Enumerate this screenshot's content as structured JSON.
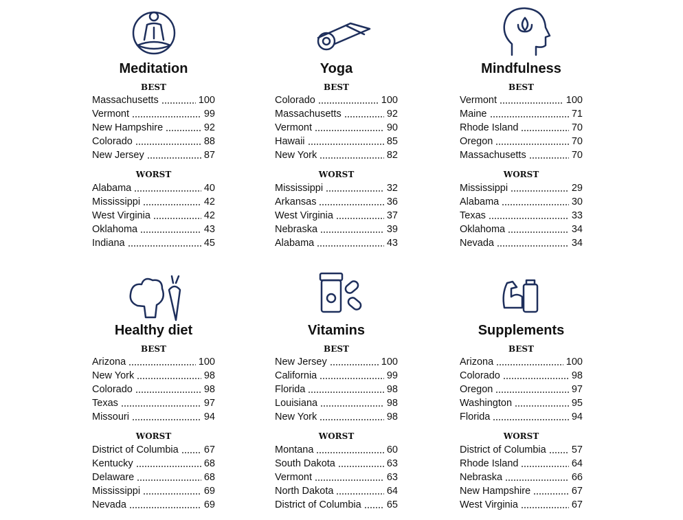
{
  "panels": [
    {
      "title": "Meditation",
      "best_label": "BEST",
      "worst_label": "WORST",
      "best": [
        [
          "Massachusetts",
          100
        ],
        [
          "Vermont",
          99
        ],
        [
          "New Hampshire",
          92
        ],
        [
          "Colorado",
          88
        ],
        [
          "New Jersey",
          87
        ]
      ],
      "worst": [
        [
          "Alabama",
          40
        ],
        [
          "Mississippi",
          42
        ],
        [
          "West Virginia",
          42
        ],
        [
          "Oklahoma",
          43
        ],
        [
          "Indiana",
          45
        ]
      ]
    },
    {
      "title": "Yoga",
      "best_label": "BEST",
      "worst_label": "WORST",
      "best": [
        [
          "Colorado",
          100
        ],
        [
          "Massachusetts",
          92
        ],
        [
          "Vermont",
          90
        ],
        [
          "Hawaii",
          85
        ],
        [
          "New York",
          82
        ]
      ],
      "worst": [
        [
          "Mississippi",
          32
        ],
        [
          "Arkansas",
          36
        ],
        [
          "West Virginia",
          37
        ],
        [
          "Nebraska",
          39
        ],
        [
          "Alabama",
          43
        ]
      ]
    },
    {
      "title": "Mindfulness",
      "best_label": "BEST",
      "worst_label": "WORST",
      "best": [
        [
          "Vermont",
          100
        ],
        [
          "Maine",
          71
        ],
        [
          "Rhode Island",
          70
        ],
        [
          "Oregon",
          70
        ],
        [
          "Massachusetts",
          70
        ]
      ],
      "worst": [
        [
          "Mississippi",
          29
        ],
        [
          "Alabama",
          30
        ],
        [
          "Texas",
          33
        ],
        [
          "Oklahoma",
          34
        ],
        [
          "Nevada",
          34
        ]
      ]
    },
    {
      "title": "Healthy diet",
      "best_label": "BEST",
      "worst_label": "WORST",
      "best": [
        [
          "Arizona",
          100
        ],
        [
          "New York",
          98
        ],
        [
          "Colorado",
          98
        ],
        [
          "Texas",
          97
        ],
        [
          "Missouri",
          94
        ]
      ],
      "worst": [
        [
          "District of Columbia",
          67
        ],
        [
          "Kentucky",
          68
        ],
        [
          "Delaware",
          68
        ],
        [
          "Mississippi",
          69
        ],
        [
          "Nevada",
          69
        ]
      ]
    },
    {
      "title": "Vitamins",
      "best_label": "BEST",
      "worst_label": "WORST",
      "best": [
        [
          "New Jersey",
          100
        ],
        [
          "California",
          99
        ],
        [
          "Florida",
          98
        ],
        [
          "Louisiana",
          98
        ],
        [
          "New York",
          98
        ]
      ],
      "worst": [
        [
          "Montana",
          60
        ],
        [
          "South Dakota",
          63
        ],
        [
          "Vermont",
          63
        ],
        [
          "North Dakota",
          64
        ],
        [
          "District of Columbia",
          65
        ]
      ]
    },
    {
      "title": "Supplements",
      "best_label": "BEST",
      "worst_label": "WORST",
      "best": [
        [
          "Arizona",
          100
        ],
        [
          "Colorado",
          98
        ],
        [
          "Oregon",
          97
        ],
        [
          "Washington",
          95
        ],
        [
          "Florida",
          94
        ]
      ],
      "worst": [
        [
          "District of Columbia",
          57
        ],
        [
          "Rhode Island",
          64
        ],
        [
          "Nebraska",
          66
        ],
        [
          "New Hampshire",
          67
        ],
        [
          "West Virginia",
          67
        ]
      ]
    }
  ]
}
